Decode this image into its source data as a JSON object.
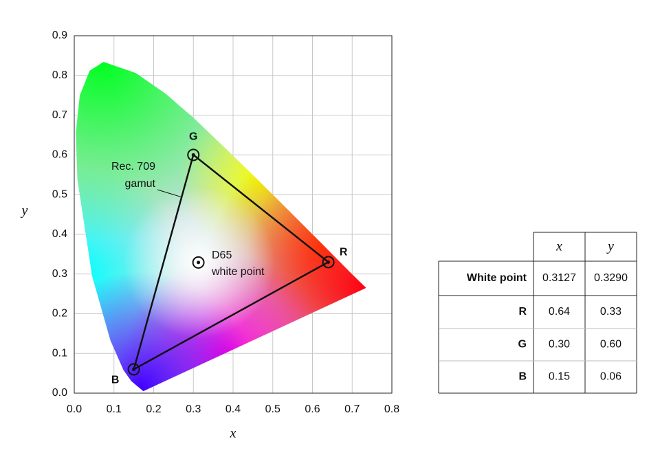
{
  "chart_data": {
    "type": "scatter",
    "x_label": "x",
    "y_label": "y",
    "xlim": [
      0,
      0.8
    ],
    "ylim": [
      0,
      0.9
    ],
    "xticks": [
      {
        "value": 0,
        "label": "0.0"
      },
      0.1,
      0.2,
      0.3,
      0.4,
      0.5,
      0.6,
      0.7,
      0.8
    ],
    "yticks": [
      {
        "value": 0,
        "label": "0.0"
      },
      0.1,
      0.2,
      0.3,
      0.4,
      0.5,
      0.6,
      0.7,
      0.8,
      0.9
    ],
    "grid": true,
    "points": {
      "labels": [
        "R",
        "G",
        "B"
      ],
      "x": [
        0.64,
        0.3,
        0.15
      ],
      "y": [
        0.33,
        0.6,
        0.06
      ]
    },
    "white_point": {
      "x": 0.3127,
      "y": 0.329
    },
    "gamut_label": [
      "Rec. 709",
      "gamut"
    ],
    "white_label": [
      "D65",
      "white point"
    ]
  },
  "table": {
    "columns": [
      "x",
      "y"
    ],
    "rows": [
      [
        "White point",
        "0.3127",
        "0.3290"
      ],
      [
        "R",
        "0.64",
        "0.33"
      ],
      [
        "G",
        "0.30",
        "0.60"
      ],
      [
        "B",
        "0.15",
        "0.06"
      ]
    ]
  }
}
